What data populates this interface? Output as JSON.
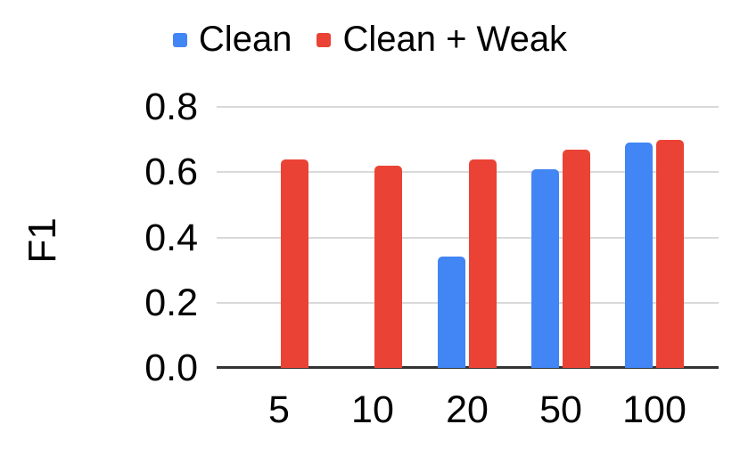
{
  "chart_data": {
    "type": "bar",
    "title": "",
    "xlabel": "",
    "ylabel": "F1",
    "categories": [
      "5",
      "10",
      "20",
      "50",
      "100"
    ],
    "series": [
      {
        "name": "Clean",
        "color": "#4285F4",
        "values": [
          null,
          null,
          0.34,
          0.61,
          0.69
        ]
      },
      {
        "name": "Clean + Weak",
        "color": "#EA4335",
        "values": [
          0.64,
          0.62,
          0.64,
          0.67,
          0.7
        ]
      }
    ],
    "ylim": [
      0,
      0.8
    ],
    "yticks": [
      "0.0",
      "0.2",
      "0.4",
      "0.6",
      "0.8"
    ],
    "grid": true,
    "legend_position": "top",
    "group_centers_pct": [
      12.43,
      31.08,
      49.91,
      68.56,
      87.21
    ]
  },
  "legend": {
    "items": [
      {
        "label": "Clean",
        "color": "#4285F4"
      },
      {
        "label": "Clean + Weak",
        "color": "#EA4335"
      }
    ]
  },
  "colors": {
    "background": "#ffffff",
    "gridline": "#d9d9d9",
    "axis_line": "#333333",
    "text": "#000000",
    "series_clean": "#4285F4",
    "series_clean_weak": "#EA4335"
  }
}
